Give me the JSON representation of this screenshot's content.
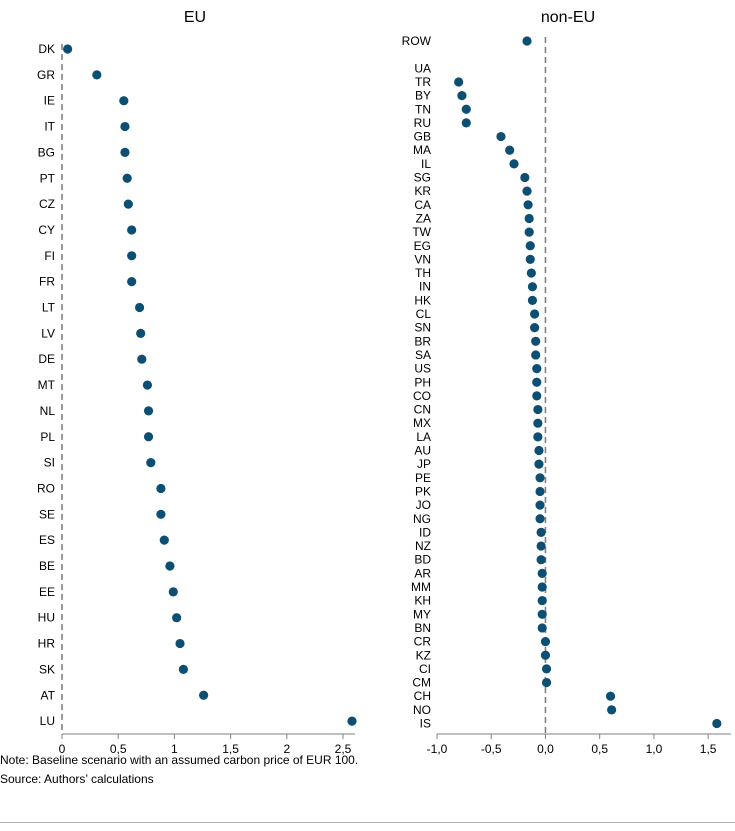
{
  "footnotes": {
    "note": "Note: Baseline scenario with an assumed carbon price of EUR 100.",
    "source": "Source: Authors’ calculations"
  },
  "colors": {
    "marker": "#0d4f73",
    "axis": "#808080",
    "zero_line": "#808080"
  },
  "chart_data": [
    {
      "type": "scatter",
      "title": "EU",
      "xlim": [
        0,
        2.5
      ],
      "xticks": [
        "0",
        "0,5",
        "1",
        "1,5",
        "2",
        "2,5"
      ],
      "categories": [
        "DK",
        "GR",
        "IE",
        "IT",
        "BG",
        "PT",
        "CZ",
        "CY",
        "FI",
        "FR",
        "LT",
        "LV",
        "DE",
        "MT",
        "NL",
        "PL",
        "SI",
        "RO",
        "SE",
        "ES",
        "BE",
        "EE",
        "HU",
        "HR",
        "SK",
        "AT",
        "LU"
      ],
      "values": [
        0.05,
        0.31,
        0.55,
        0.56,
        0.56,
        0.58,
        0.59,
        0.62,
        0.62,
        0.62,
        0.69,
        0.7,
        0.71,
        0.76,
        0.77,
        0.77,
        0.79,
        0.88,
        0.88,
        0.91,
        0.96,
        0.99,
        1.02,
        1.05,
        1.08,
        1.26,
        2.58
      ],
      "reference_line": 0,
      "grid": false
    },
    {
      "type": "scatter",
      "title": "non-EU",
      "xlim": [
        -1.0,
        1.6
      ],
      "xticks": [
        "-1,0",
        "-0,5",
        "0,0",
        "0,5",
        "1,0",
        "1,5"
      ],
      "categories": [
        "ROW",
        "",
        "UA",
        "TR",
        "BY",
        "TN",
        "RU",
        "GB",
        "MA",
        "IL",
        "SG",
        "KR",
        "CA",
        "ZA",
        "TW",
        "EG",
        "VN",
        "TH",
        "IN",
        "HK",
        "CL",
        "SN",
        "BR",
        "SA",
        "US",
        "PH",
        "CO",
        "CN",
        "MX",
        "LA",
        "AU",
        "JP",
        "PE",
        "PK",
        "JO",
        "NG",
        "ID",
        "NZ",
        "BD",
        "AR",
        "MM",
        "KH",
        "MY",
        "BN",
        "CR",
        "KZ",
        "CI",
        "CM",
        "CH",
        "NO",
        "IS"
      ],
      "values": [
        -0.17,
        null,
        null,
        -0.8,
        -0.77,
        -0.73,
        -0.73,
        -0.41,
        -0.33,
        -0.29,
        -0.19,
        -0.17,
        -0.16,
        -0.15,
        -0.15,
        -0.14,
        -0.14,
        -0.13,
        -0.12,
        -0.12,
        -0.1,
        -0.1,
        -0.09,
        -0.09,
        -0.08,
        -0.08,
        -0.08,
        -0.07,
        -0.07,
        -0.07,
        -0.06,
        -0.06,
        -0.05,
        -0.05,
        -0.05,
        -0.05,
        -0.04,
        -0.04,
        -0.04,
        -0.03,
        -0.03,
        -0.03,
        -0.03,
        -0.03,
        0.0,
        0.0,
        0.01,
        0.01,
        0.6,
        0.61,
        1.58
      ],
      "reference_line": 0,
      "grid": false
    }
  ]
}
